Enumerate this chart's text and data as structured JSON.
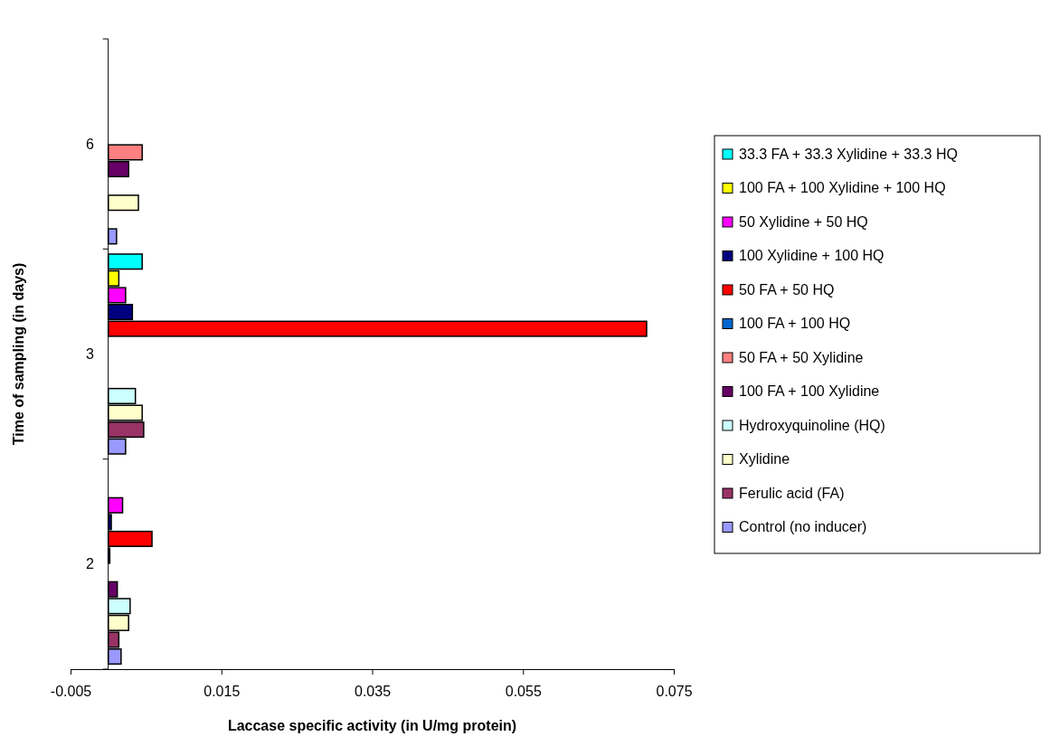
{
  "chart_data": {
    "type": "bar",
    "orientation": "horizontal",
    "xlabel": "Laccase specific activity (in U/mg protein)",
    "ylabel": "Time of sampling (in days)",
    "categories": [
      "6",
      "3",
      "2"
    ],
    "xlim": [
      -0.005,
      0.075
    ],
    "xticks": [
      -0.005,
      0.015,
      0.035,
      0.055,
      0.075
    ],
    "grid": false,
    "legend": "right",
    "series": [
      {
        "name": "33.3 FA + 33.3 Xylidine + 33.3 HQ",
        "color": "#00ffff",
        "values": [
          null,
          0.0045,
          null
        ]
      },
      {
        "name": "100 FA + 100 Xylidine + 100 HQ",
        "color": "#ffff00",
        "values": [
          null,
          0.0014,
          null
        ]
      },
      {
        "name": "50 Xylidine + 50 HQ",
        "color": "#ff00ff",
        "values": [
          null,
          0.0023,
          0.0019
        ]
      },
      {
        "name": "100 Xylidine + 100 HQ",
        "color": "#000080",
        "values": [
          null,
          0.0032,
          0.0004
        ]
      },
      {
        "name": "50 FA + 50 HQ",
        "color": "#ff0000",
        "values": [
          null,
          0.0714,
          0.0058
        ]
      },
      {
        "name": "100 FA + 100 HQ",
        "color": "#0066cc",
        "values": [
          null,
          null,
          0.0002
        ]
      },
      {
        "name": "50 FA + 50 Xylidine",
        "color": "#ff8080",
        "values": [
          0.0045,
          null,
          null
        ]
      },
      {
        "name": "100 FA + 100 Xylidine",
        "color": "#660066",
        "values": [
          0.0027,
          null,
          0.0012
        ]
      },
      {
        "name": "Hydroxyquinoline (HQ)",
        "color": "#ccffff",
        "values": [
          null,
          0.0036,
          0.0029
        ]
      },
      {
        "name": "Xylidine",
        "color": "#ffffcc",
        "values": [
          0.004,
          0.0045,
          0.0027
        ]
      },
      {
        "name": "Ferulic acid (FA)",
        "color": "#993366",
        "values": [
          null,
          0.0047,
          0.0014
        ]
      },
      {
        "name": "Control (no inducer)",
        "color": "#9999ff",
        "values": [
          0.0011,
          0.0023,
          0.0017
        ]
      }
    ]
  }
}
